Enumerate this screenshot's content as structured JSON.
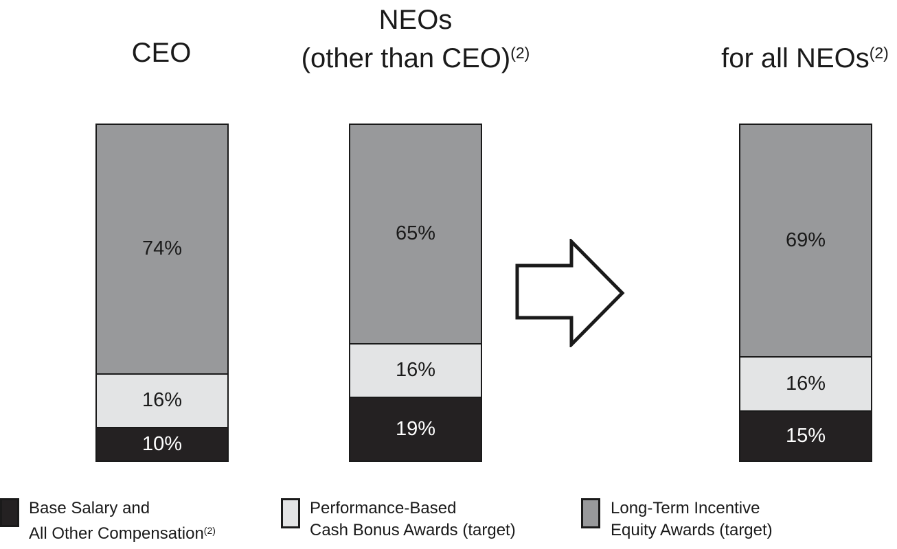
{
  "titles": {
    "col1_line1": "CEO",
    "col2_line1": "NEOs",
    "col2_line2": "(other than CEO)",
    "col2_sup": "(2)",
    "col3_line1": "for all NEOs",
    "col3_sup": "(2)"
  },
  "chart_data": {
    "type": "bar",
    "stacked": true,
    "orientation": "vertical",
    "unit": "%",
    "categories": [
      "CEO",
      "NEOs (other than CEO)(2)",
      "for all NEOs(2)"
    ],
    "series": [
      {
        "name": "Long-Term Incentive Equity Awards (target)",
        "color": "#98999b",
        "label_color": "#1a1a1a",
        "values": [
          74,
          65,
          69
        ],
        "labels": [
          "74%",
          "65%",
          "69%"
        ]
      },
      {
        "name": "Performance-Based Cash Bonus Awards (target)",
        "color": "#e3e4e5",
        "label_color": "#1a1a1a",
        "values": [
          16,
          16,
          16
        ],
        "labels": [
          "16%",
          "16%",
          "16%"
        ]
      },
      {
        "name": "Base Salary and All Other Compensation(2)",
        "color": "#242122",
        "label_color": "#ffffff",
        "values": [
          10,
          19,
          15
        ],
        "labels": [
          "10%",
          "19%",
          "15%"
        ]
      }
    ],
    "ylim": [
      0,
      100
    ],
    "grid": false,
    "axes": "none",
    "legend_position": "bottom"
  },
  "arrow": {
    "direction": "right",
    "fill": "#ffffff",
    "stroke": "#1a1a1a"
  },
  "legend": {
    "items": [
      {
        "color": "#242122",
        "line1": "Base Salary and",
        "line2": "All Other Compensation",
        "sup": "(2)"
      },
      {
        "color": "#e3e4e5",
        "line1": "Performance-Based",
        "line2": "Cash Bonus Awards (target)",
        "sup": ""
      },
      {
        "color": "#98999b",
        "line1": "Long-Term Incentive",
        "line2": "Equity Awards (target)",
        "sup": ""
      }
    ]
  }
}
